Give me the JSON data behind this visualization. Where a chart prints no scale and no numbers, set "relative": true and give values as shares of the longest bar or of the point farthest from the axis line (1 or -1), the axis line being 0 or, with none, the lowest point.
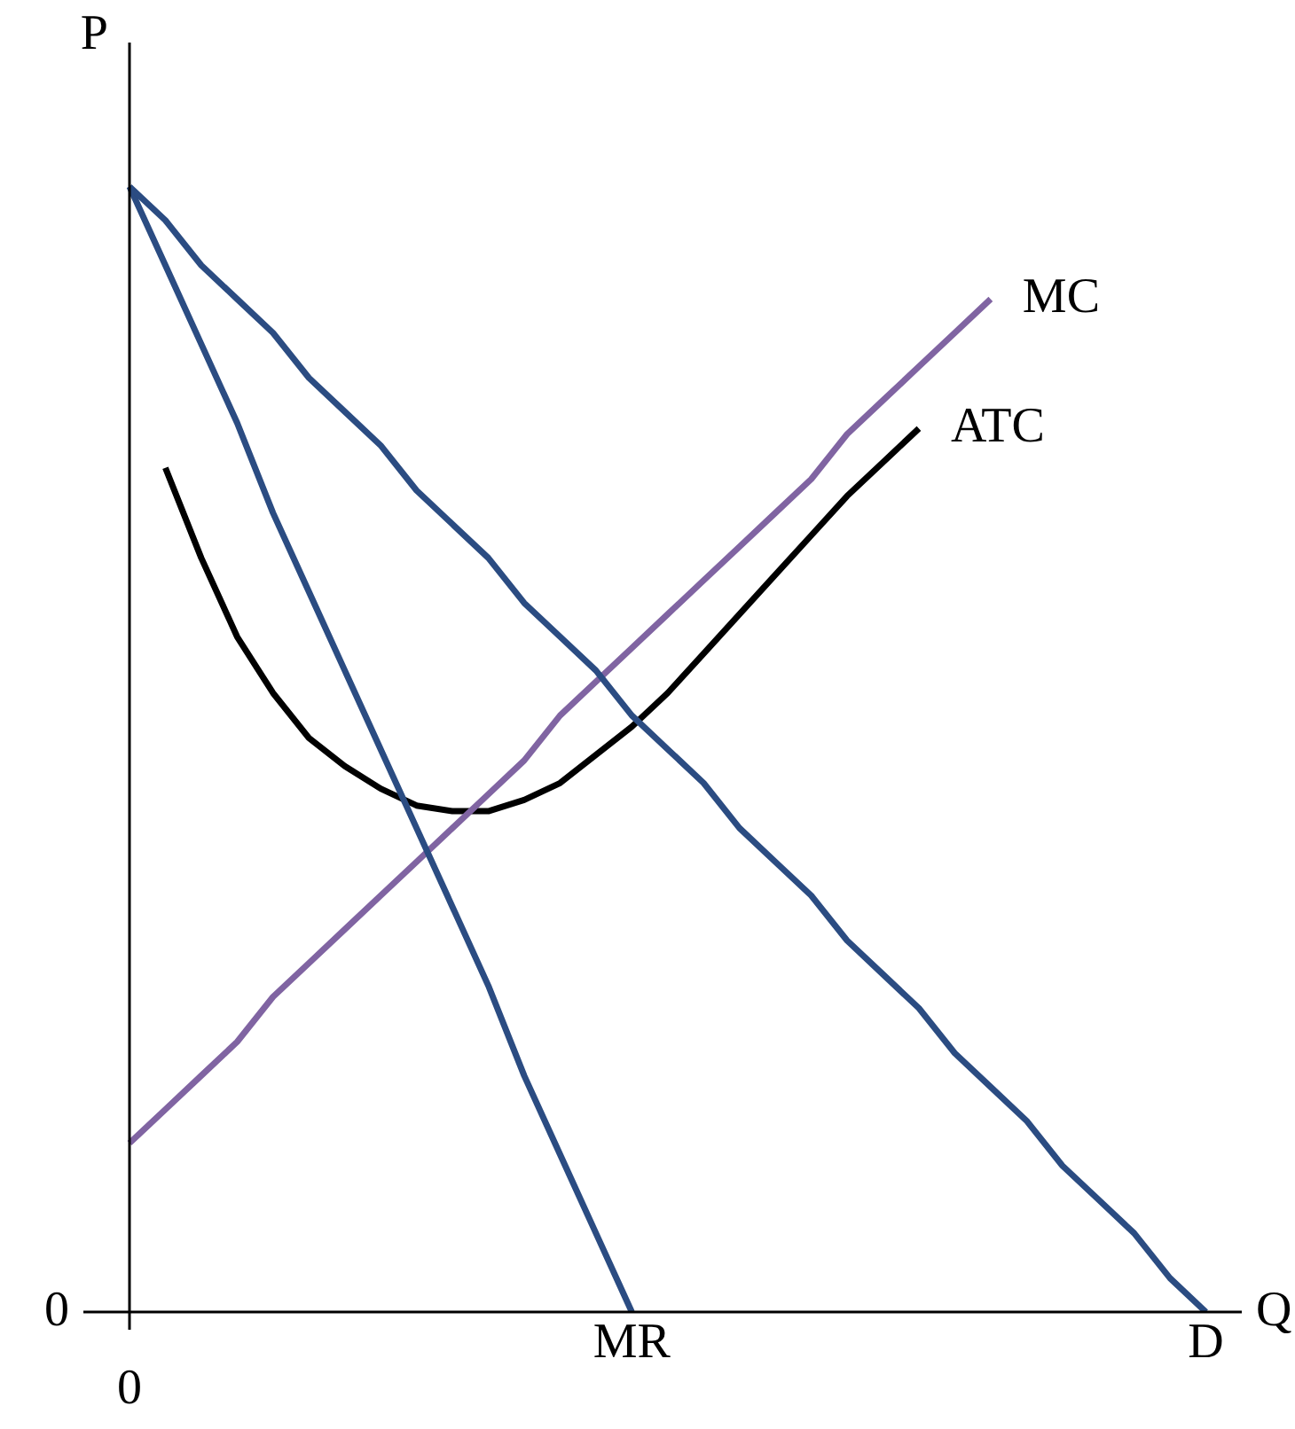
{
  "chart_data": {
    "type": "line",
    "relative": true,
    "xlabel": "Q",
    "ylabel": "P",
    "categories": [
      null,
      null,
      null,
      null,
      null,
      null,
      null,
      null,
      null,
      null,
      null,
      null,
      null,
      null,
      null,
      null,
      null,
      null,
      null,
      null,
      null,
      null,
      null,
      null,
      null,
      null,
      null,
      null,
      null,
      null,
      null,
      null
    ],
    "series": [
      {
        "name": "D",
        "color": "#2b4c82",
        "values": [
          1,
          0.97,
          0.93,
          0.9,
          0.87,
          0.83,
          0.8,
          0.77,
          0.73,
          0.7,
          0.67,
          0.63,
          0.6,
          0.57,
          0.53,
          0.5,
          0.47,
          0.43,
          0.4,
          0.37,
          0.33,
          0.3,
          0.27,
          0.23,
          0.2,
          0.17,
          0.13,
          0.1,
          0.07,
          0.03,
          0,
          null
        ]
      },
      {
        "name": "MR",
        "color": "#2b4c82",
        "values": [
          1,
          0.93,
          0.86,
          0.79,
          0.71,
          0.64,
          0.57,
          0.5,
          0.43,
          0.36,
          0.29,
          0.21,
          0.14,
          0.07,
          0,
          null,
          null,
          null,
          null,
          null,
          null,
          null,
          null,
          null,
          null,
          null,
          null,
          null,
          null,
          null,
          null,
          null
        ]
      },
      {
        "name": "MC",
        "color": "#8064a2",
        "values": [
          0.15,
          0.18,
          0.21,
          0.24,
          0.28,
          0.31,
          0.34,
          0.37,
          0.4,
          0.43,
          0.46,
          0.49,
          0.53,
          0.56,
          0.59,
          0.62,
          0.65,
          0.68,
          0.71,
          0.74,
          0.78,
          0.81,
          0.84,
          0.87,
          0.9,
          null,
          null,
          null,
          null,
          null,
          null,
          null
        ]
      },
      {
        "name": "ATC",
        "color": "#000000",
        "values": [
          null,
          0.75,
          0.67,
          0.6,
          0.55,
          0.51,
          0.485,
          0.465,
          0.45,
          0.445,
          0.445,
          0.455,
          0.47,
          0.495,
          0.52,
          0.55,
          0.585,
          0.62,
          0.655,
          0.69,
          0.725,
          0.755,
          0.785,
          null,
          null,
          null,
          null,
          null,
          null,
          null,
          null,
          null
        ]
      }
    ],
    "annotations": [
      "0",
      "0"
    ],
    "grid": false,
    "legend": false,
    "marker": "none",
    "line_style": "solid"
  }
}
